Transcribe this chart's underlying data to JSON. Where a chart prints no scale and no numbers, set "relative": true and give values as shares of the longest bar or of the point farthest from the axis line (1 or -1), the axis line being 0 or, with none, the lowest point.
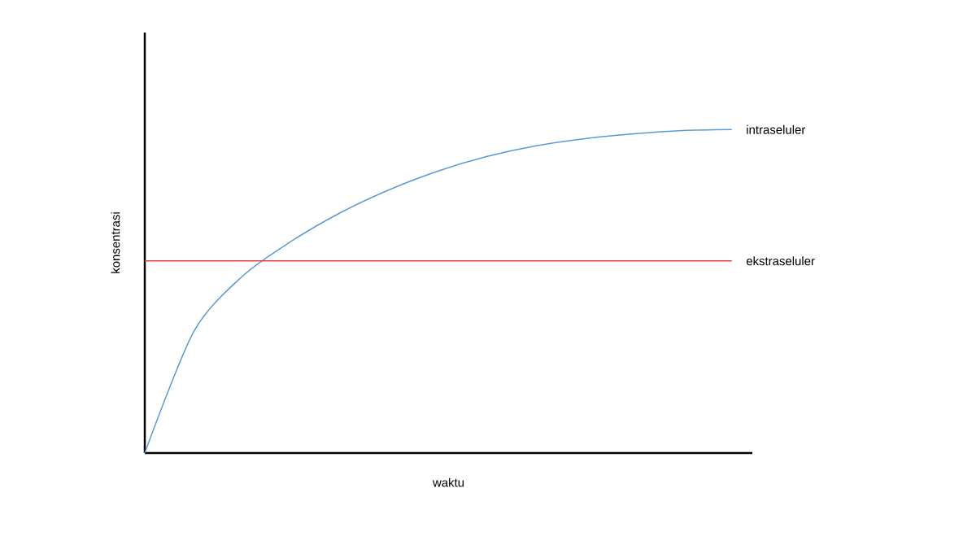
{
  "chart_data": {
    "type": "line",
    "relative": true,
    "xlabel": "waktu",
    "ylabel": "konsentrasi",
    "categories": [
      null,
      null,
      null,
      null,
      null,
      null,
      null,
      null,
      null,
      null,
      null,
      null,
      null
    ],
    "series": [
      {
        "name": "intraseluler",
        "color": "#5b9bd5",
        "values": [
          0,
          0.375,
          0.547,
          0.655,
          0.743,
          0.814,
          0.872,
          0.917,
          0.95,
          0.972,
          0.987,
          0.997,
          1
        ]
      },
      {
        "name": "ekstraseluler",
        "color": "#e0413a",
        "values": [
          0.594,
          0.594,
          0.594,
          0.594,
          0.594,
          0.594,
          0.594,
          0.594,
          0.594,
          0.594,
          0.594,
          0.594,
          0.594
        ]
      }
    ]
  }
}
